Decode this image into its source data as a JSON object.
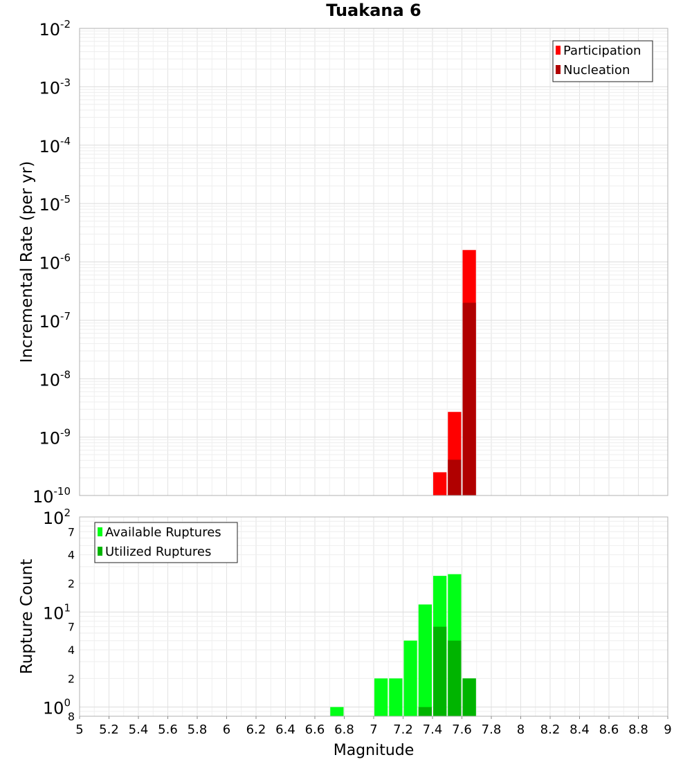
{
  "chart_data": [
    {
      "type": "bar",
      "title": "Tuakana 6",
      "ylabel": "Incremental Rate (per yr)",
      "yscale": "log",
      "ylim": [
        1e-10,
        0.01
      ],
      "xlim": [
        5,
        9
      ],
      "bin_width": 0.1,
      "y_ticks": [
        {
          "value": 1e-10,
          "base": "10",
          "exp": "-10"
        },
        {
          "value": 1e-09,
          "base": "10",
          "exp": "-9"
        },
        {
          "value": 1e-08,
          "base": "10",
          "exp": "-8"
        },
        {
          "value": 1e-07,
          "base": "10",
          "exp": "-7"
        },
        {
          "value": 1e-06,
          "base": "10",
          "exp": "-6"
        },
        {
          "value": 1e-05,
          "base": "10",
          "exp": "-5"
        },
        {
          "value": 0.0001,
          "base": "10",
          "exp": "-4"
        },
        {
          "value": 0.001,
          "base": "10",
          "exp": "-3"
        },
        {
          "value": 0.01,
          "base": "10",
          "exp": "-2"
        }
      ],
      "legend_position": "top-right",
      "grid": true,
      "series": [
        {
          "name": "Participation",
          "color": "#ff0000",
          "points": [
            {
              "x": 7.45,
              "y": 2.5e-10
            },
            {
              "x": 7.55,
              "y": 2.7e-09
            },
            {
              "x": 7.65,
              "y": 1.6e-06
            }
          ]
        },
        {
          "name": "Nucleation",
          "color": "#b00000",
          "points": [
            {
              "x": 7.55,
              "y": 4.1e-10
            },
            {
              "x": 7.65,
              "y": 2e-07
            }
          ]
        }
      ]
    },
    {
      "type": "bar",
      "ylabel": "Rupture Count",
      "xlabel": "Magnitude",
      "yscale": "log",
      "ylim": [
        0.8,
        100
      ],
      "xlim": [
        5,
        9
      ],
      "bin_width": 0.1,
      "y_ticks": [
        {
          "value": 1,
          "base": "10",
          "exp": "0"
        },
        {
          "value": 10,
          "base": "10",
          "exp": "1"
        },
        {
          "value": 100,
          "base": "10",
          "exp": "2"
        }
      ],
      "y_minor_ticks": [
        {
          "value": 0.8,
          "label": "8"
        },
        {
          "value": 2,
          "label": "2"
        },
        {
          "value": 4,
          "label": "4"
        },
        {
          "value": 7,
          "label": "7"
        },
        {
          "value": 20,
          "label": "2"
        },
        {
          "value": 40,
          "label": "4"
        },
        {
          "value": 70,
          "label": "7"
        }
      ],
      "x_ticks": [
        "5",
        "5.2",
        "5.4",
        "5.6",
        "5.8",
        "6",
        "6.2",
        "6.4",
        "6.6",
        "6.8",
        "7",
        "7.2",
        "7.4",
        "7.6",
        "7.8",
        "8",
        "8.2",
        "8.4",
        "8.6",
        "8.8",
        "9"
      ],
      "legend_position": "top-left",
      "grid": true,
      "series": [
        {
          "name": "Available Ruptures",
          "color": "#00ff16",
          "points": [
            {
              "x": 6.75,
              "y": 1
            },
            {
              "x": 7.05,
              "y": 2
            },
            {
              "x": 7.15,
              "y": 2
            },
            {
              "x": 7.25,
              "y": 5
            },
            {
              "x": 7.35,
              "y": 12
            },
            {
              "x": 7.45,
              "y": 24
            },
            {
              "x": 7.55,
              "y": 25
            },
            {
              "x": 7.65,
              "y": 2
            }
          ]
        },
        {
          "name": "Utilized Ruptures",
          "color": "#00b400",
          "points": [
            {
              "x": 7.35,
              "y": 1
            },
            {
              "x": 7.45,
              "y": 7
            },
            {
              "x": 7.55,
              "y": 5
            },
            {
              "x": 7.65,
              "y": 2
            }
          ]
        }
      ]
    }
  ]
}
